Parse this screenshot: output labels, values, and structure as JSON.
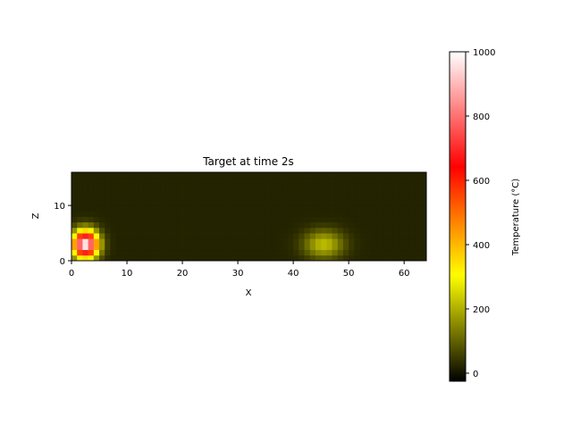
{
  "chart_data": {
    "type": "heatmap",
    "title": "Target at time 2s",
    "xlabel": "X",
    "ylabel": "Z",
    "xlim": [
      0,
      64
    ],
    "ylim": [
      0,
      16
    ],
    "xticks": [
      "0",
      "10",
      "20",
      "30",
      "40",
      "50",
      "60"
    ],
    "yticks": [
      "0",
      "10"
    ],
    "background_value": 20,
    "hotspots": [
      {
        "x": 2.5,
        "z": 3,
        "peak": 1000,
        "spread_x": 2.2,
        "spread_z": 2.4
      },
      {
        "x": 45.5,
        "z": 3,
        "peak": 220,
        "spread_x": 3.5,
        "spread_z": 2.5
      }
    ],
    "colorbar": {
      "label": "Temperature (°C)",
      "range": [
        -25,
        1000
      ],
      "ticks": [
        "0",
        "200",
        "400",
        "600",
        "800",
        "1000"
      ],
      "tick_values": [
        0,
        200,
        400,
        600,
        800,
        1000
      ],
      "colormap": [
        "#000000",
        "#ffff00",
        "#ff7700",
        "#ff0000",
        "#ffffff"
      ]
    }
  }
}
